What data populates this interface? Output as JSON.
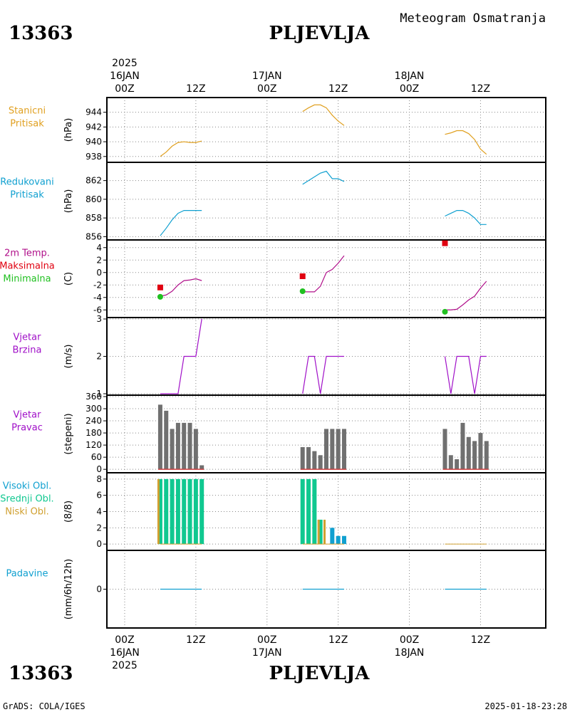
{
  "header": {
    "station_id": "13363",
    "station_name": "PLJEVLJA",
    "product": "Meteogram Osmatranja"
  },
  "footer": {
    "station_id": "13363",
    "station_name": "PLJEVLJA",
    "credit": "GrADS: COLA/IGES",
    "timestamp": "2025-01-18-23:28"
  },
  "time_axis": {
    "top": [
      {
        "day": "16JAN",
        "year": "2025",
        "hour": "00Z",
        "hourOffset": 0
      },
      {
        "hour": "12Z",
        "hourOffset": 12
      },
      {
        "day": "17JAN",
        "hour": "00Z",
        "hourOffset": 24
      },
      {
        "hour": "12Z",
        "hourOffset": 36
      },
      {
        "day": "18JAN",
        "hour": "00Z",
        "hourOffset": 48
      },
      {
        "hour": "12Z",
        "hourOffset": 60
      }
    ],
    "bottom": [
      {
        "hour": "00Z",
        "day": "16JAN",
        "year": "2025",
        "hourOffset": 0
      },
      {
        "hour": "12Z",
        "hourOffset": 12
      },
      {
        "hour": "00Z",
        "day": "17JAN",
        "hourOffset": 24
      },
      {
        "hour": "12Z",
        "hourOffset": 36
      },
      {
        "hour": "00Z",
        "day": "18JAN",
        "hourOffset": 48
      },
      {
        "hour": "12Z",
        "hourOffset": 60
      }
    ],
    "range_hours": [
      -3,
      71
    ]
  },
  "colors": {
    "station_pressure": "#e0a020",
    "reduced_pressure": "#10a0d0",
    "temperature": "#b0108a",
    "tmax": "#e00010",
    "tmin": "#20c020",
    "wind_speed": "#a010c8",
    "wind_dir_bar": "#707070",
    "wind_dir_base": "#d04040",
    "cloud_high": "#10a0d0",
    "cloud_mid": "#10c890",
    "cloud_low": "#d0a030",
    "precip": "#10a0d0"
  },
  "chart_data": [
    {
      "type": "line",
      "panel": "station_pressure",
      "label_lines": [
        "Stanicni",
        "Pritisak"
      ],
      "ylabel": "(hPa)",
      "yticks": [
        938,
        940,
        942,
        944
      ],
      "ylim": [
        937.4,
        945.8
      ],
      "series": [
        {
          "x": [
            6,
            7,
            8,
            9,
            10,
            11,
            12,
            13
          ],
          "y": [
            938.0,
            938.6,
            939.4,
            939.9,
            940.0,
            939.9,
            939.9,
            940.1
          ]
        },
        {
          "x": [
            30,
            31,
            32,
            33,
            34,
            35,
            36,
            37
          ],
          "y": [
            944.1,
            944.6,
            945.0,
            945.0,
            944.6,
            943.6,
            942.8,
            942.2
          ]
        },
        {
          "x": [
            54,
            55,
            56,
            57,
            58,
            59,
            60,
            61
          ],
          "y": [
            941.0,
            941.2,
            941.5,
            941.5,
            941.1,
            940.3,
            939.0,
            938.3
          ]
        }
      ]
    },
    {
      "type": "line",
      "panel": "reduced_pressure",
      "label_lines": [
        "Redukovani",
        "Pritisak"
      ],
      "ylabel": "(hPa)",
      "yticks": [
        856,
        858,
        860,
        862
      ],
      "ylim": [
        855.8,
        863.8
      ],
      "series": [
        {
          "x": [
            6,
            7,
            8,
            9,
            10,
            11,
            12,
            13
          ],
          "y": [
            856.1,
            856.9,
            857.8,
            858.5,
            858.8,
            858.8,
            858.8,
            858.8
          ]
        },
        {
          "x": [
            30,
            31,
            32,
            33,
            34,
            35,
            36,
            37
          ],
          "y": [
            861.6,
            862.0,
            862.4,
            862.8,
            863.0,
            862.2,
            862.2,
            861.9
          ]
        },
        {
          "x": [
            54,
            55,
            56,
            57,
            58,
            59,
            60,
            61
          ],
          "y": [
            858.2,
            858.5,
            858.8,
            858.8,
            858.5,
            858.0,
            857.3,
            857.3
          ]
        }
      ]
    },
    {
      "type": "line",
      "panel": "temperature",
      "label_lines": [
        "2m Temp.",
        "Maksimalna",
        "Minimalna"
      ],
      "ylabel": "(C)",
      "yticks": [
        -6,
        -4,
        -2,
        0,
        2,
        4
      ],
      "ylim": [
        -7,
        5
      ],
      "series": [
        {
          "x": [
            6,
            7,
            8,
            9,
            10,
            11,
            12,
            13
          ],
          "y": [
            -3.8,
            -3.6,
            -3.0,
            -2.0,
            -1.3,
            -1.2,
            -1.0,
            -1.3
          ]
        },
        {
          "x": [
            30,
            31,
            32,
            33,
            34,
            35,
            36,
            37
          ],
          "y": [
            -3.1,
            -3.1,
            -3.1,
            -2.2,
            0.0,
            0.5,
            1.5,
            2.7
          ]
        },
        {
          "x": [
            54,
            55,
            56,
            57,
            58,
            59,
            60,
            61
          ],
          "y": [
            -6.0,
            -6.0,
            -5.9,
            -5.2,
            -4.4,
            -3.8,
            -2.5,
            -1.4
          ]
        }
      ],
      "maxima": [
        {
          "x": 6,
          "y": -2.4
        },
        {
          "x": 30,
          "y": -0.6
        },
        {
          "x": 54,
          "y": 4.7
        }
      ],
      "minima": [
        {
          "x": 6,
          "y": -3.9
        },
        {
          "x": 30,
          "y": -3.0
        },
        {
          "x": 54,
          "y": -6.3
        }
      ]
    },
    {
      "type": "line",
      "panel": "wind_speed",
      "label_lines": [
        "Vjetar",
        "Brzina"
      ],
      "ylabel": "(m/s)",
      "yticks": [
        1,
        2,
        3
      ],
      "ylim": [
        1,
        3
      ],
      "series": [
        {
          "x": [
            6,
            7,
            8,
            9,
            10,
            11,
            12,
            13
          ],
          "y": [
            1,
            1,
            1,
            1,
            2,
            2,
            2,
            3
          ]
        },
        {
          "x": [
            30,
            31,
            32,
            33,
            34,
            35,
            36,
            37
          ],
          "y": [
            1,
            2,
            2,
            1,
            2,
            2,
            2,
            2
          ]
        },
        {
          "x": [
            54,
            55,
            56,
            57,
            58,
            59,
            60,
            61
          ],
          "y": [
            2,
            1,
            2,
            2,
            2,
            1,
            2,
            2
          ]
        }
      ]
    },
    {
      "type": "bar",
      "panel": "wind_direction",
      "label_lines": [
        "Vjetar",
        "Pravac"
      ],
      "ylabel": "(stepeni)",
      "yticks": [
        0,
        60,
        120,
        180,
        240,
        300,
        360
      ],
      "ylim": [
        -10,
        360
      ],
      "x": [
        6,
        7,
        8,
        9,
        10,
        11,
        12,
        13,
        30,
        31,
        32,
        33,
        34,
        35,
        36,
        37,
        54,
        55,
        56,
        57,
        58,
        59,
        60,
        61
      ],
      "values": [
        320,
        290,
        200,
        230,
        230,
        230,
        200,
        20,
        110,
        110,
        90,
        70,
        200,
        200,
        200,
        200,
        200,
        70,
        50,
        230,
        160,
        140,
        180,
        140
      ]
    },
    {
      "type": "bar",
      "panel": "clouds",
      "label_lines": [
        "Visoki Obl.",
        "Srednji Obl.",
        "Niski Obl."
      ],
      "ylabel": "(8/8)",
      "yticks": [
        0,
        2,
        4,
        6,
        8
      ],
      "ylim": [
        -0.6,
        8.6
      ],
      "low": [
        {
          "x": 6,
          "y": 8
        },
        {
          "x": 33,
          "y": 3
        },
        {
          "x": 34,
          "y": 3
        }
      ],
      "mid": [
        {
          "x": 6,
          "y": 8
        },
        {
          "x": 7,
          "y": 8
        },
        {
          "x": 8,
          "y": 8
        },
        {
          "x": 9,
          "y": 8
        },
        {
          "x": 10,
          "y": 8
        },
        {
          "x": 11,
          "y": 8
        },
        {
          "x": 12,
          "y": 8
        },
        {
          "x": 13,
          "y": 8
        },
        {
          "x": 30,
          "y": 8
        },
        {
          "x": 31,
          "y": 8
        },
        {
          "x": 32,
          "y": 8
        },
        {
          "x": 33,
          "y": 3
        }
      ],
      "high": [
        {
          "x": 35,
          "y": 2
        },
        {
          "x": 36,
          "y": 1
        },
        {
          "x": 37,
          "y": 1
        }
      ]
    },
    {
      "type": "line",
      "panel": "precipitation",
      "label_lines": [
        "Padavine"
      ],
      "ylabel": "(mm/6h/12h)",
      "yticks": [
        0
      ],
      "ylim": [
        -1,
        1
      ],
      "series": [
        {
          "x": [
            6,
            13
          ],
          "y": [
            0,
            0
          ]
        },
        {
          "x": [
            30,
            37
          ],
          "y": [
            0,
            0
          ]
        },
        {
          "x": [
            54,
            61
          ],
          "y": [
            0,
            0
          ]
        }
      ]
    }
  ]
}
